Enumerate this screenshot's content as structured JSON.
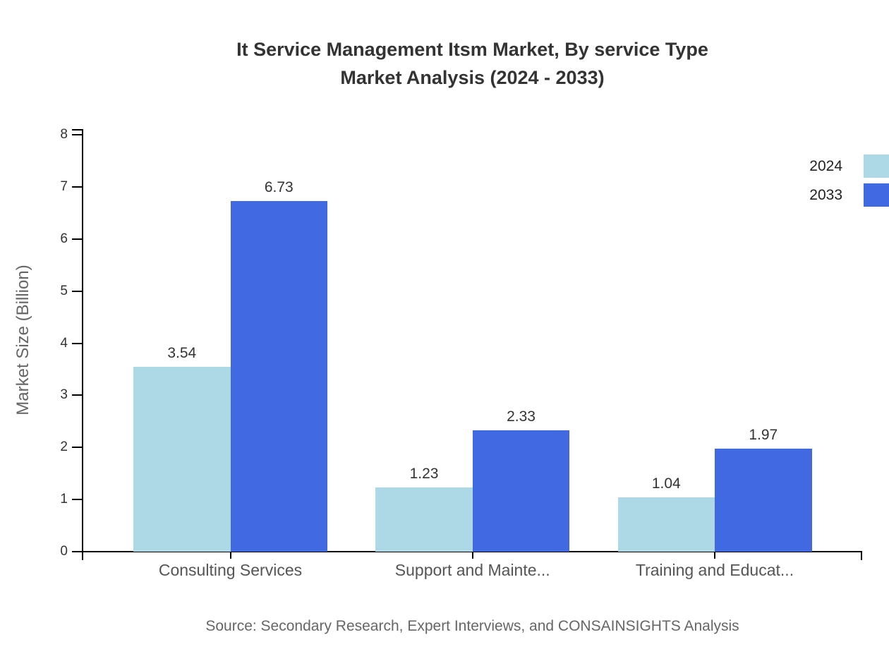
{
  "title": {
    "line1": "It Service Management Itsm Market, By service Type",
    "line2": "Market Analysis (2024 - 2033)"
  },
  "chart_data": {
    "type": "bar",
    "title": "It Service Management Itsm Market, By service Type Market Analysis (2024 - 2033)",
    "categories": [
      "Consulting Services",
      "Support and Mainte...",
      "Training and Educat..."
    ],
    "series": [
      {
        "name": "2024",
        "color": "#ADD8E6",
        "values": [
          3.54,
          1.23,
          1.04
        ]
      },
      {
        "name": "2033",
        "color": "#4169E1",
        "values": [
          6.73,
          2.33,
          1.97
        ]
      }
    ],
    "xlabel": "",
    "ylabel": "Market Size (Billion)",
    "ylim": [
      0,
      8
    ],
    "ytick_step": 1,
    "grid": false,
    "legend_position": "top-right",
    "bar_value_labels": true
  },
  "footer": {
    "source": "Source: Secondary Research, Expert Interviews, and CONSAINSIGHTS Analysis"
  }
}
